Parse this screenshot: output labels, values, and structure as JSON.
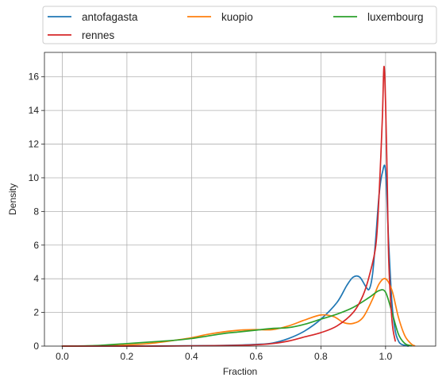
{
  "chart_data": {
    "type": "line",
    "xlabel": "Fraction",
    "ylabel": "Density",
    "xlim": [
      -0.055,
      1.155
    ],
    "ylim": [
      0,
      17.45
    ],
    "xticks": [
      0.0,
      0.2,
      0.4,
      0.6,
      0.8,
      1.0
    ],
    "xtick_labels": [
      "0.0",
      "0.2",
      "0.4",
      "0.6",
      "0.8",
      "1.0"
    ],
    "yticks": [
      0,
      2,
      4,
      6,
      8,
      10,
      12,
      14,
      16
    ],
    "ytick_labels": [
      "0",
      "2",
      "4",
      "6",
      "8",
      "10",
      "12",
      "14",
      "16"
    ],
    "grid": true,
    "legend_position": "above, three columns",
    "series": [
      {
        "name": "antofagasta",
        "color": "#1f77b4",
        "x": [
          0.0,
          0.2,
          0.4,
          0.5,
          0.6,
          0.65,
          0.7,
          0.75,
          0.8,
          0.85,
          0.88,
          0.9,
          0.92,
          0.94,
          0.95,
          0.96,
          0.97,
          0.98,
          0.99,
          1.0,
          1.01,
          1.02,
          1.03,
          1.04,
          1.05,
          1.07
        ],
        "y": [
          0.0,
          0.0,
          0.02,
          0.04,
          0.1,
          0.18,
          0.45,
          0.9,
          1.6,
          2.6,
          3.6,
          4.1,
          4.1,
          3.5,
          3.4,
          4.3,
          6.5,
          9.0,
          10.3,
          10.4,
          6.0,
          2.5,
          0.9,
          0.3,
          0.1,
          0.0
        ]
      },
      {
        "name": "kuopio",
        "color": "#ff7f0e",
        "x": [
          0.0,
          0.15,
          0.25,
          0.3,
          0.35,
          0.4,
          0.45,
          0.5,
          0.55,
          0.6,
          0.65,
          0.7,
          0.75,
          0.8,
          0.84,
          0.87,
          0.9,
          0.93,
          0.96,
          0.98,
          1.0,
          1.02,
          1.04,
          1.06,
          1.08,
          1.09
        ],
        "y": [
          0.0,
          0.03,
          0.12,
          0.22,
          0.35,
          0.5,
          0.7,
          0.85,
          0.95,
          0.98,
          0.98,
          1.2,
          1.55,
          1.85,
          1.75,
          1.4,
          1.35,
          1.7,
          2.8,
          3.7,
          4.0,
          3.3,
          1.7,
          0.6,
          0.12,
          0.02
        ]
      },
      {
        "name": "luxembourg",
        "color": "#2ca02c",
        "x": [
          0.0,
          0.1,
          0.2,
          0.3,
          0.35,
          0.4,
          0.45,
          0.5,
          0.55,
          0.6,
          0.65,
          0.7,
          0.75,
          0.8,
          0.85,
          0.9,
          0.95,
          0.98,
          1.0,
          1.02,
          1.04,
          1.06,
          1.08
        ],
        "y": [
          0.0,
          0.03,
          0.15,
          0.28,
          0.35,
          0.45,
          0.6,
          0.75,
          0.85,
          0.95,
          1.05,
          1.1,
          1.3,
          1.6,
          1.9,
          2.3,
          2.9,
          3.3,
          3.2,
          2.0,
          0.7,
          0.15,
          0.02
        ]
      },
      {
        "name": "rennes",
        "color": "#d62728",
        "x": [
          0.0,
          0.3,
          0.5,
          0.6,
          0.65,
          0.7,
          0.75,
          0.8,
          0.85,
          0.9,
          0.93,
          0.95,
          0.97,
          0.98,
          0.99,
          0.995,
          1.0,
          1.005,
          1.01,
          1.02,
          1.03
        ],
        "y": [
          0.0,
          0.0,
          0.03,
          0.08,
          0.15,
          0.3,
          0.55,
          0.8,
          1.2,
          2.0,
          3.0,
          4.2,
          6.0,
          9.0,
          13.5,
          16.6,
          14.5,
          10.0,
          5.0,
          1.5,
          0.3
        ]
      }
    ]
  }
}
